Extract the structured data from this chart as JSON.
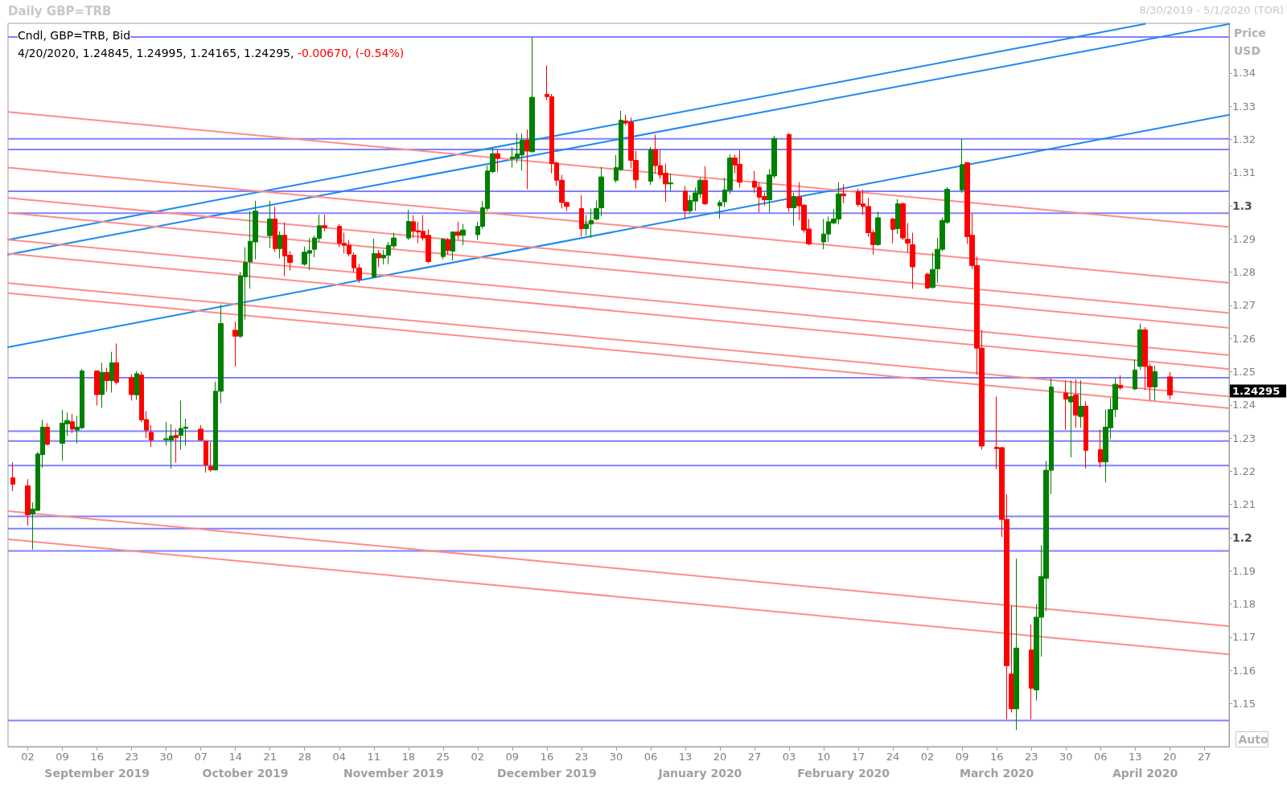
{
  "chart_data": {
    "type": "candlestick",
    "title": "Daily GBP=TRB",
    "subtitle": "8/30/2019 - 5/1/2020 (TOR)",
    "ylabel": "Price\nUSD",
    "x": [
      "2019-08-30",
      "2019-09-02",
      "2019-09-03",
      "2019-09-04",
      "2019-09-05",
      "2019-09-06",
      "2019-09-09",
      "2019-09-10",
      "2019-09-11",
      "2019-09-12",
      "2019-09-13",
      "2019-09-16",
      "2019-09-17",
      "2019-09-18",
      "2019-09-19",
      "2019-09-20",
      "2019-09-23",
      "2019-09-24",
      "2019-09-25",
      "2019-09-26",
      "2019-09-27",
      "2019-09-30",
      "2019-10-01",
      "2019-10-02",
      "2019-10-03",
      "2019-10-04",
      "2019-10-07",
      "2019-10-08",
      "2019-10-09",
      "2019-10-10",
      "2019-10-11",
      "2019-10-14",
      "2019-10-15",
      "2019-10-16",
      "2019-10-17",
      "2019-10-18",
      "2019-10-21",
      "2019-10-22",
      "2019-10-23",
      "2019-10-24",
      "2019-10-25",
      "2019-10-28",
      "2019-10-29",
      "2019-10-30",
      "2019-10-31",
      "2019-11-01",
      "2019-11-04",
      "2019-11-05",
      "2019-11-06",
      "2019-11-07",
      "2019-11-08",
      "2019-11-11",
      "2019-11-12",
      "2019-11-13",
      "2019-11-14",
      "2019-11-15",
      "2019-11-18",
      "2019-11-19",
      "2019-11-20",
      "2019-11-21",
      "2019-11-22",
      "2019-11-25",
      "2019-11-26",
      "2019-11-27",
      "2019-11-28",
      "2019-11-29",
      "2019-12-02",
      "2019-12-03",
      "2019-12-04",
      "2019-12-05",
      "2019-12-06",
      "2019-12-09",
      "2019-12-10",
      "2019-12-11",
      "2019-12-12",
      "2019-12-13",
      "2019-12-16",
      "2019-12-17",
      "2019-12-18",
      "2019-12-19",
      "2019-12-20",
      "2019-12-23",
      "2019-12-24",
      "2019-12-25",
      "2019-12-26",
      "2019-12-27",
      "2019-12-30",
      "2019-12-31",
      "2020-01-01",
      "2020-01-02",
      "2020-01-03",
      "2020-01-06",
      "2020-01-07",
      "2020-01-08",
      "2020-01-09",
      "2020-01-10",
      "2020-01-13",
      "2020-01-14",
      "2020-01-15",
      "2020-01-16",
      "2020-01-17",
      "2020-01-20",
      "2020-01-21",
      "2020-01-22",
      "2020-01-23",
      "2020-01-24",
      "2020-01-27",
      "2020-01-28",
      "2020-01-29",
      "2020-01-30",
      "2020-01-31",
      "2020-02-03",
      "2020-02-04",
      "2020-02-05",
      "2020-02-06",
      "2020-02-07",
      "2020-02-10",
      "2020-02-11",
      "2020-02-12",
      "2020-02-13",
      "2020-02-14",
      "2020-02-17",
      "2020-02-18",
      "2020-02-19",
      "2020-02-20",
      "2020-02-21",
      "2020-02-24",
      "2020-02-25",
      "2020-02-26",
      "2020-02-27",
      "2020-02-28",
      "2020-03-02",
      "2020-03-03",
      "2020-03-04",
      "2020-03-05",
      "2020-03-06",
      "2020-03-09",
      "2020-03-10",
      "2020-03-11",
      "2020-03-12",
      "2020-03-13",
      "2020-03-16",
      "2020-03-17",
      "2020-03-18",
      "2020-03-19",
      "2020-03-20",
      "2020-03-23",
      "2020-03-24",
      "2020-03-25",
      "2020-03-26",
      "2020-03-27",
      "2020-03-30",
      "2020-03-31",
      "2020-04-01",
      "2020-04-02",
      "2020-04-03",
      "2020-04-06",
      "2020-04-07",
      "2020-04-08",
      "2020-04-09",
      "2020-04-10",
      "2020-04-13",
      "2020-04-14",
      "2020-04-15",
      "2020-04-16",
      "2020-04-17",
      "2020-04-20"
    ],
    "xlim": [
      "2019-08-29",
      "2020-05-02"
    ],
    "x2lim": [
      "2019-08-29",
      "2020-05-02"
    ],
    "ohlc": [
      [
        1.218,
        1.2227,
        1.214,
        1.2161
      ],
      [
        1.2156,
        1.2176,
        1.2036,
        1.2069
      ],
      [
        1.2071,
        1.2106,
        1.1964,
        1.2086
      ],
      [
        1.2082,
        1.2258,
        1.2081,
        1.2252
      ],
      [
        1.225,
        1.2355,
        1.221,
        1.2333
      ],
      [
        1.2333,
        1.2345,
        1.2278,
        1.2281
      ],
      [
        1.2284,
        1.2385,
        1.2232,
        1.2345
      ],
      [
        1.2343,
        1.2377,
        1.2306,
        1.2353
      ],
      [
        1.2349,
        1.2373,
        1.2315,
        1.2327
      ],
      [
        1.2324,
        1.2367,
        1.2284,
        1.2333
      ],
      [
        1.2331,
        1.2508,
        1.2327,
        1.2502
      ],
      [
        1.2502,
        1.2504,
        1.2398,
        1.2431
      ],
      [
        1.2431,
        1.2527,
        1.2391,
        1.2498
      ],
      [
        1.2498,
        1.2512,
        1.244,
        1.2473
      ],
      [
        1.2473,
        1.256,
        1.2437,
        1.2527
      ],
      [
        1.2527,
        1.2585,
        1.2461,
        1.2468
      ],
      [
        1.2482,
        1.2492,
        1.2413,
        1.2431
      ],
      [
        1.243,
        1.2502,
        1.2415,
        1.2494
      ],
      [
        1.249,
        1.25,
        1.2348,
        1.2355
      ],
      [
        1.2356,
        1.2381,
        1.23,
        1.2324
      ],
      [
        1.2317,
        1.2339,
        1.2273,
        1.2294
      ],
      [
        1.2295,
        1.2348,
        1.2278,
        1.2298
      ],
      [
        1.2294,
        1.2341,
        1.2208,
        1.2306
      ],
      [
        1.2308,
        1.2328,
        1.2226,
        1.2301
      ],
      [
        1.2308,
        1.2413,
        1.2265,
        1.2329
      ],
      [
        1.2329,
        1.2359,
        1.2277,
        1.2333
      ],
      [
        1.2327,
        1.2339,
        1.2292,
        1.2294
      ],
      [
        1.229,
        1.2294,
        1.2196,
        1.2219
      ],
      [
        1.2214,
        1.2288,
        1.2199,
        1.2204
      ],
      [
        1.2204,
        1.247,
        1.2202,
        1.2441
      ],
      [
        1.2441,
        1.2702,
        1.2405,
        1.2645
      ],
      [
        1.2625,
        1.2651,
        1.2516,
        1.2607
      ],
      [
        1.2607,
        1.2801,
        1.2601,
        1.2788
      ],
      [
        1.2786,
        1.2875,
        1.2657,
        1.2829
      ],
      [
        1.2831,
        1.2984,
        1.275,
        1.2893
      ],
      [
        1.2891,
        1.3015,
        1.2839,
        1.2984
      ],
      [
        1.291,
        1.3015,
        1.2873,
        1.296
      ],
      [
        1.296,
        1.2998,
        1.2861,
        1.2871
      ],
      [
        1.2871,
        1.2923,
        1.2841,
        1.2911
      ],
      [
        1.2911,
        1.295,
        1.2788,
        1.2849
      ],
      [
        1.2851,
        1.2863,
        1.2805,
        1.2829
      ],
      [
        1.2824,
        1.2877,
        1.2819,
        1.286
      ],
      [
        1.2857,
        1.2903,
        1.2806,
        1.2865
      ],
      [
        1.2869,
        1.291,
        1.2845,
        1.2903
      ],
      [
        1.2902,
        1.2973,
        1.2891,
        1.294
      ],
      [
        1.294,
        1.2973,
        1.2923,
        1.2934
      ],
      [
        1.2938,
        1.2944,
        1.2875,
        1.2887
      ],
      [
        1.2887,
        1.2919,
        1.2856,
        1.2881
      ],
      [
        1.2881,
        1.2897,
        1.2847,
        1.2855
      ],
      [
        1.2851,
        1.2859,
        1.28,
        1.2813
      ],
      [
        1.2813,
        1.2825,
        1.2768,
        1.2778
      ],
      [
        1.2786,
        1.2901,
        1.2782,
        1.2856
      ],
      [
        1.2856,
        1.2867,
        1.2815,
        1.2843
      ],
      [
        1.2843,
        1.2867,
        1.2823,
        1.2851
      ],
      [
        1.2851,
        1.2891,
        1.2824,
        1.2881
      ],
      [
        1.2879,
        1.2919,
        1.2871,
        1.2903
      ],
      [
        1.2903,
        1.2988,
        1.2897,
        1.2953
      ],
      [
        1.2952,
        1.2972,
        1.2903,
        1.2923
      ],
      [
        1.2925,
        1.2952,
        1.2887,
        1.2921
      ],
      [
        1.2923,
        1.2972,
        1.2895,
        1.2903
      ],
      [
        1.2911,
        1.2929,
        1.2827,
        1.2832
      ],
      [
        1.2847,
        1.2903,
        1.2839,
        1.2899
      ],
      [
        1.2897,
        1.2903,
        1.2853,
        1.2865
      ],
      [
        1.2863,
        1.2923,
        1.2835,
        1.2921
      ],
      [
        1.2921,
        1.2952,
        1.2899,
        1.2911
      ],
      [
        1.2911,
        1.2945,
        1.2881,
        1.2927
      ],
      [
        1.2913,
        1.2952,
        1.2897,
        1.2938
      ],
      [
        1.2938,
        1.3014,
        1.2931,
        1.2994
      ],
      [
        1.2992,
        1.3121,
        1.2984,
        1.3105
      ],
      [
        1.3103,
        1.3173,
        1.3098,
        1.3157
      ],
      [
        1.3157,
        1.3169,
        1.3101,
        1.3143
      ],
      [
        1.3141,
        1.3176,
        1.3115,
        1.3147
      ],
      [
        1.3145,
        1.3218,
        1.3129,
        1.3156
      ],
      [
        1.3153,
        1.3218,
        1.3106,
        1.3198
      ],
      [
        1.3198,
        1.323,
        1.305,
        1.3165
      ],
      [
        1.3163,
        1.3508,
        1.3161,
        1.3327
      ],
      [
        1.3336,
        1.3423,
        1.3319,
        1.3329
      ],
      [
        1.3329,
        1.3337,
        1.3098,
        1.3127
      ],
      [
        1.3129,
        1.3133,
        1.306,
        1.3077
      ],
      [
        1.3077,
        1.3093,
        1.2992,
        1.301
      ],
      [
        1.301,
        1.3012,
        1.2984,
        1.2998
      ],
      [
        1.2992,
        1.3032,
        1.2907,
        1.2931
      ],
      [
        1.2931,
        1.2972,
        1.2911,
        1.2945
      ],
      [
        1.2945,
        1.2992,
        1.2903,
        1.2956
      ],
      [
        1.296,
        1.3016,
        1.2956,
        1.2992
      ],
      [
        1.2994,
        1.3117,
        1.2968,
        1.3087
      ],
      [
        1.3077,
        1.3153,
        1.3069,
        1.3115
      ],
      [
        1.3109,
        1.3286,
        1.3105,
        1.3258
      ],
      [
        1.3256,
        1.3274,
        1.3242,
        1.325
      ],
      [
        1.3252,
        1.3266,
        1.3113,
        1.3137
      ],
      [
        1.3137,
        1.3165,
        1.3052,
        1.3078
      ],
      [
        1.3074,
        1.3177,
        1.3063,
        1.3169
      ],
      [
        1.3169,
        1.3214,
        1.3097,
        1.3121
      ],
      [
        1.3121,
        1.3169,
        1.3081,
        1.3093
      ],
      [
        1.3098,
        1.3127,
        1.3012,
        1.3066
      ],
      [
        1.3066,
        1.3098,
        1.3044,
        1.3069
      ],
      [
        1.3044,
        1.306,
        1.2961,
        1.2985
      ],
      [
        1.2985,
        1.3032,
        1.2976,
        1.3016
      ],
      [
        1.3014,
        1.3055,
        1.2985,
        1.3039
      ],
      [
        1.3036,
        1.3085,
        1.3024,
        1.3077
      ],
      [
        1.3077,
        1.3119,
        1.3002,
        1.3006
      ],
      [
        1.3,
        1.3016,
        1.2961,
        1.301
      ],
      [
        1.3012,
        1.3085,
        1.2996,
        1.3048
      ],
      [
        1.3047,
        1.3155,
        1.3036,
        1.3144
      ],
      [
        1.3144,
        1.3153,
        1.3098,
        1.3123
      ],
      [
        1.3125,
        1.3167,
        1.3055,
        1.3071
      ],
      [
        1.3074,
        1.3105,
        1.3039,
        1.3056
      ],
      [
        1.3056,
        1.3071,
        1.298,
        1.3026
      ],
      [
        1.3028,
        1.304,
        1.3,
        1.3018
      ],
      [
        1.3018,
        1.3111,
        1.298,
        1.3093
      ],
      [
        1.309,
        1.3211,
        1.3082,
        1.3203
      ],
      [
        1.3215,
        1.3219,
        1.2982,
        1.2994
      ],
      [
        1.2994,
        1.304,
        1.294,
        1.3028
      ],
      [
        1.3026,
        1.3071,
        1.2956,
        1.3
      ],
      [
        1.3002,
        1.3004,
        1.2919,
        1.2927
      ],
      [
        1.293,
        1.296,
        1.2881,
        1.2885
      ],
      [
        1.2891,
        1.296,
        1.2869,
        1.2915
      ],
      [
        1.2915,
        1.2968,
        1.2891,
        1.2952
      ],
      [
        1.2948,
        1.299,
        1.2944,
        1.296
      ],
      [
        1.296,
        1.3071,
        1.2944,
        1.3036
      ],
      [
        1.3036,
        1.3065,
        1.3008,
        1.303
      ],
      [
        1.3042,
        1.3052,
        1.2996,
        1.3004
      ],
      [
        1.3006,
        1.3048,
        1.2972,
        1.2998
      ],
      [
        1.2998,
        1.3024,
        1.2907,
        1.2919
      ],
      [
        1.2919,
        1.2927,
        1.2853,
        1.2883
      ],
      [
        1.2883,
        1.2982,
        1.2879,
        1.2964
      ],
      [
        1.296,
        1.2964,
        1.2887,
        1.2929
      ],
      [
        1.2931,
        1.302,
        1.2915,
        1.3006
      ],
      [
        1.3006,
        1.301,
        1.2897,
        1.2903
      ],
      [
        1.2899,
        1.2948,
        1.2859,
        1.2887
      ],
      [
        1.2883,
        1.2919,
        1.275,
        1.2816
      ],
      [
        1.2794,
        1.2798,
        1.275,
        1.2752
      ],
      [
        1.2754,
        1.2859,
        1.275,
        1.2808
      ],
      [
        1.281,
        1.2903,
        1.2768,
        1.2869
      ],
      [
        1.2869,
        1.2964,
        1.2863,
        1.2956
      ],
      [
        1.295,
        1.3056,
        1.2945,
        1.305
      ],
      [
        1.3048,
        1.3201,
        1.3039,
        1.3124
      ],
      [
        1.313,
        1.3132,
        1.2885,
        1.2907
      ],
      [
        1.2911,
        1.2976,
        1.281,
        1.282
      ],
      [
        1.282,
        1.2847,
        1.2491,
        1.2571
      ],
      [
        1.2571,
        1.2626,
        1.2265,
        1.2276
      ],
      [
        1.2272,
        1.2425,
        1.2206,
        1.2268
      ],
      [
        1.2271,
        1.2274,
        1.2002,
        1.2055
      ],
      [
        1.2055,
        1.2131,
        1.1452,
        1.1614
      ],
      [
        1.1589,
        1.1795,
        1.1473,
        1.1484
      ],
      [
        1.1484,
        1.1937,
        1.142,
        1.1667
      ],
      [
        1.1661,
        1.1738,
        1.1452,
        1.1546
      ],
      [
        1.1541,
        1.18,
        1.1509,
        1.176
      ],
      [
        1.176,
        1.1977,
        1.1641,
        1.1883
      ],
      [
        1.1877,
        1.2231,
        1.1778,
        1.2203
      ],
      [
        1.2203,
        1.2479,
        1.2131,
        1.2454
      ],
      [
        1.2436,
        1.2474,
        1.2325,
        1.2417
      ],
      [
        1.2409,
        1.2474,
        1.2242,
        1.2425
      ],
      [
        1.243,
        1.2477,
        1.2331,
        1.2369
      ],
      [
        1.2365,
        1.2474,
        1.2331,
        1.2396
      ],
      [
        1.2396,
        1.2411,
        1.2208,
        1.2263
      ],
      [
        1.2265,
        1.2325,
        1.2211,
        1.2228
      ],
      [
        1.2228,
        1.2386,
        1.2166,
        1.2333
      ],
      [
        1.2331,
        1.242,
        1.2297,
        1.2386
      ],
      [
        1.2386,
        1.2479,
        1.2363,
        1.2462
      ],
      [
        1.2459,
        1.2489,
        1.2445,
        1.2451
      ],
      [
        1.2448,
        1.2537,
        1.2445,
        1.2505
      ],
      [
        1.2516,
        1.2645,
        1.2505,
        1.2626
      ],
      [
        1.2626,
        1.2634,
        1.2445,
        1.2516
      ],
      [
        1.2516,
        1.2525,
        1.2413,
        1.2454
      ],
      [
        1.2454,
        1.2519,
        1.2413,
        1.25
      ],
      [
        1.24845,
        1.24995,
        1.24165,
        1.24295
      ]
    ],
    "colors": [
      "#ff0000",
      "#ff0000",
      "#008000",
      "#008000",
      "#008000",
      "#ff0000",
      "#008000",
      "#008000",
      "#ff0000",
      "#008000",
      "#008000",
      "#ff0000",
      "#008000",
      "#ff0000",
      "#008000",
      "#ff0000",
      "#ff0000",
      "#008000",
      "#ff0000",
      "#ff0000",
      "#ff0000",
      "#008000",
      "#008000",
      "#ff0000",
      "#008000",
      "#008000",
      "#ff0000",
      "#ff0000",
      "#ff0000",
      "#008000",
      "#008000",
      "#ff0000",
      "#008000",
      "#008000",
      "#008000",
      "#008000",
      "#008000",
      "#ff0000",
      "#008000",
      "#ff0000",
      "#ff0000",
      "#008000",
      "#008000",
      "#008000",
      "#008000",
      "#ff0000",
      "#ff0000",
      "#ff0000",
      "#ff0000",
      "#ff0000",
      "#ff0000",
      "#008000",
      "#ff0000",
      "#008000",
      "#008000",
      "#008000",
      "#008000",
      "#ff0000",
      "#ff0000",
      "#ff0000",
      "#ff0000",
      "#008000",
      "#ff0000",
      "#008000",
      "#ff0000",
      "#008000",
      "#008000",
      "#008000",
      "#008000",
      "#008000",
      "#ff0000",
      "#008000",
      "#008000",
      "#008000",
      "#ff0000",
      "#008000",
      "#ff0000",
      "#ff0000",
      "#ff0000",
      "#ff0000",
      "#ff0000",
      "#ff0000",
      "#008000",
      "#008000",
      "#008000",
      "#008000",
      "#008000",
      "#008000",
      "#ff0000",
      "#ff0000",
      "#ff0000",
      "#008000",
      "#ff0000",
      "#ff0000",
      "#ff0000",
      "#008000",
      "#ff0000",
      "#008000",
      "#008000",
      "#008000",
      "#ff0000",
      "#008000",
      "#008000",
      "#008000",
      "#ff0000",
      "#ff0000",
      "#ff0000",
      "#ff0000",
      "#ff0000",
      "#008000",
      "#008000",
      "#ff0000",
      "#008000",
      "#ff0000",
      "#ff0000",
      "#ff0000",
      "#008000",
      "#008000",
      "#008000",
      "#008000",
      "#ff0000",
      "#ff0000",
      "#ff0000",
      "#ff0000",
      "#ff0000",
      "#008000",
      "#ff0000",
      "#008000",
      "#ff0000",
      "#ff0000",
      "#ff0000",
      "#ff0000",
      "#008000",
      "#008000",
      "#008000",
      "#008000",
      "#008000",
      "#ff0000",
      "#ff0000",
      "#ff0000",
      "#ff0000",
      "#ff0000",
      "#ff0000",
      "#ff0000",
      "#ff0000",
      "#008000",
      "#ff0000",
      "#008000",
      "#008000",
      "#008000",
      "#008000",
      "#ff0000",
      "#008000",
      "#ff0000",
      "#008000",
      "#ff0000",
      "#ff0000",
      "#008000",
      "#008000",
      "#008000",
      "#ff0000",
      "#008000",
      "#008000",
      "#ff0000",
      "#ff0000",
      "#008000",
      "#ff0000"
    ],
    "xticks": [
      {
        "value": "2019-09-02",
        "label": "02"
      },
      {
        "value": "2019-09-09",
        "label": "09"
      },
      {
        "value": "2019-09-16",
        "label": "16"
      },
      {
        "value": "2019-09-23",
        "label": "23"
      },
      {
        "value": "2019-09-30",
        "label": "30"
      },
      {
        "value": "2019-10-07",
        "label": "07"
      },
      {
        "value": "2019-10-14",
        "label": "14"
      },
      {
        "value": "2019-10-21",
        "label": "21"
      },
      {
        "value": "2019-10-28",
        "label": "28"
      },
      {
        "value": "2019-11-04",
        "label": "04"
      },
      {
        "value": "2019-11-11",
        "label": "11"
      },
      {
        "value": "2019-11-18",
        "label": "18"
      },
      {
        "value": "2019-11-25",
        "label": "25"
      },
      {
        "value": "2019-12-02",
        "label": "02"
      },
      {
        "value": "2019-12-09",
        "label": "09"
      },
      {
        "value": "2019-12-16",
        "label": "16"
      },
      {
        "value": "2019-12-23",
        "label": "23"
      },
      {
        "value": "2019-12-30",
        "label": "30"
      },
      {
        "value": "2020-01-06",
        "label": "06"
      },
      {
        "value": "2020-01-13",
        "label": "13"
      },
      {
        "value": "2020-01-20",
        "label": "20"
      },
      {
        "value": "2020-01-27",
        "label": "27"
      },
      {
        "value": "2020-02-03",
        "label": "03"
      },
      {
        "value": "2020-02-10",
        "label": "10"
      },
      {
        "value": "2020-02-17",
        "label": "17"
      },
      {
        "value": "2020-02-24",
        "label": "24"
      },
      {
        "value": "2020-03-02",
        "label": "02"
      },
      {
        "value": "2020-03-09",
        "label": "09"
      },
      {
        "value": "2020-03-16",
        "label": "16"
      },
      {
        "value": "2020-03-23",
        "label": "23"
      },
      {
        "value": "2020-03-30",
        "label": "30"
      },
      {
        "value": "2020-04-06",
        "label": "06"
      },
      {
        "value": "2020-04-13",
        "label": "13"
      },
      {
        "value": "2020-04-20",
        "label": "20"
      },
      {
        "value": "2020-04-27",
        "label": "27"
      }
    ],
    "x2ticks": [
      {
        "value": "2019-09-16",
        "label": "September 2019"
      },
      {
        "value": "2019-10-16",
        "label": "October 2019"
      },
      {
        "value": "2019-11-15",
        "label": "November 2019"
      },
      {
        "value": "2019-12-16",
        "label": "December 2019"
      },
      {
        "value": "2020-01-16",
        "label": "January 2020"
      },
      {
        "value": "2020-02-14",
        "label": "February 2020"
      },
      {
        "value": "2020-03-16",
        "label": "March 2020"
      },
      {
        "value": "2020-04-15",
        "label": "April 2020"
      }
    ],
    "ylim": [
      1.137,
      1.355
    ],
    "yticks": [
      1.15,
      1.16,
      1.17,
      1.18,
      1.19,
      1.2,
      1.21,
      1.22,
      1.23,
      1.24,
      1.25,
      1.26,
      1.27,
      1.28,
      1.29,
      1.3,
      1.31,
      1.32,
      1.33,
      1.34
    ],
    "series": [
      {
        "type": "line",
        "color": "#1e88f0",
        "x": [
          "2019-08-29",
          "2020-04-15"
        ],
        "values": [
          1.2898,
          1.3548
        ]
      },
      {
        "type": "line",
        "color": "#1e88f0",
        "x": [
          "2019-08-29",
          "2020-05-02"
        ],
        "values": [
          1.2853,
          1.3548
        ]
      },
      {
        "type": "line",
        "color": "#1e88f0",
        "x": [
          "2019-08-29",
          "2020-05-02"
        ],
        "values": [
          1.2574,
          1.3274
        ]
      },
      {
        "type": "line",
        "color": "#ff8c8c",
        "x": [
          "2019-08-29",
          "2020-05-02"
        ],
        "values": [
          1.3283,
          1.2936
        ]
      },
      {
        "type": "line",
        "color": "#ff8c8c",
        "x": [
          "2019-08-29",
          "2020-05-02"
        ],
        "values": [
          1.3115,
          1.2768
        ]
      },
      {
        "type": "line",
        "color": "#ff8c8c",
        "x": [
          "2019-08-29",
          "2020-05-02"
        ],
        "values": [
          1.3024,
          1.2677
        ]
      },
      {
        "type": "line",
        "color": "#ff8c8c",
        "x": [
          "2019-08-29",
          "2020-05-02"
        ],
        "values": [
          1.2979,
          1.2632
        ]
      },
      {
        "type": "line",
        "color": "#ff8c8c",
        "x": [
          "2019-08-29",
          "2020-05-02"
        ],
        "values": [
          1.2898,
          1.255
        ]
      },
      {
        "type": "line",
        "color": "#ff8c8c",
        "x": [
          "2019-08-29",
          "2020-05-02"
        ],
        "values": [
          1.2856,
          1.2508
        ]
      },
      {
        "type": "line",
        "color": "#ff8c8c",
        "x": [
          "2019-08-29",
          "2020-05-02"
        ],
        "values": [
          1.2767,
          1.2425
        ]
      },
      {
        "type": "line",
        "color": "#ff8c8c",
        "x": [
          "2019-08-29",
          "2020-05-02"
        ],
        "values": [
          1.2737,
          1.239
        ]
      },
      {
        "type": "line",
        "color": "#ff8c8c",
        "x": [
          "2019-08-29",
          "2020-05-02"
        ],
        "values": [
          1.208,
          1.1733
        ]
      },
      {
        "type": "line",
        "color": "#ff8c8c",
        "x": [
          "2019-08-29",
          "2020-05-02"
        ],
        "values": [
          1.1995,
          1.1648
        ]
      }
    ],
    "ref_lines": [
      {
        "axis": "y",
        "value": 1.3509,
        "color": "#8080ff"
      },
      {
        "axis": "y",
        "value": 1.3202,
        "color": "#8080ff"
      },
      {
        "axis": "y",
        "value": 1.317,
        "color": "#8080ff"
      },
      {
        "axis": "y",
        "value": 1.3044,
        "color": "#8080ff"
      },
      {
        "axis": "y",
        "value": 1.2978,
        "color": "#8080ff"
      },
      {
        "axis": "y",
        "value": 1.2482,
        "color": "#8080ff"
      },
      {
        "axis": "y",
        "value": 1.2321,
        "color": "#8080ff"
      },
      {
        "axis": "y",
        "value": 1.2291,
        "color": "#8080ff"
      },
      {
        "axis": "y",
        "value": 1.2217,
        "color": "#8080ff"
      },
      {
        "axis": "y",
        "value": 1.2064,
        "color": "#8080ff"
      },
      {
        "axis": "y",
        "value": 1.2027,
        "color": "#8080ff"
      },
      {
        "axis": "y",
        "value": 1.196,
        "color": "#8080ff"
      },
      {
        "axis": "y",
        "value": 1.1449,
        "color": "#8080ff"
      }
    ],
    "annotations": [
      "Cndl, GBP=TRB, Bid",
      "4/20/2020, 1.24845, 1.24995, 1.24165, 1.24295,",
      "-0.00670, (-0.54%)",
      "1.24295",
      "Auto"
    ]
  }
}
